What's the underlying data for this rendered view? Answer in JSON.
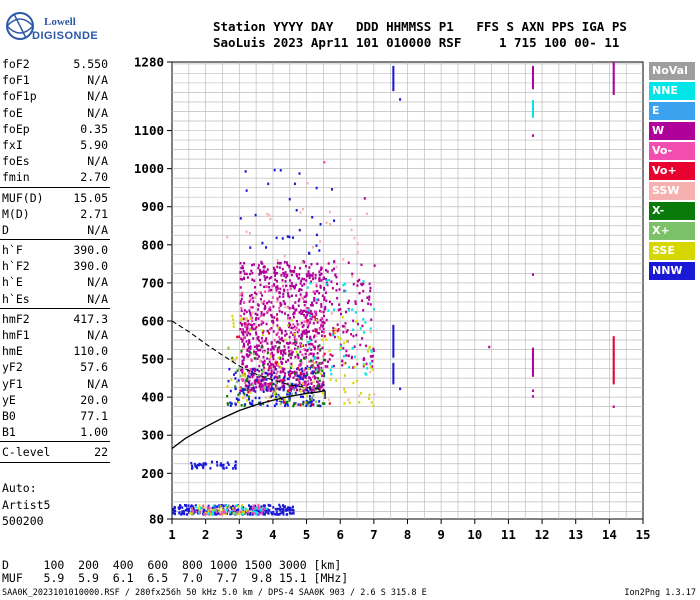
{
  "logo": {
    "line1": "Lowell",
    "line2": "DIGISONDE"
  },
  "header": {
    "line1": "Station YYYY DAY   DDD HHMMSS P1   FFS S AXN PPS IGA PS",
    "line2": "SaoLuis 2023 Apr11 101 010000 RSF     1 715 100 00- 11"
  },
  "params": {
    "group1": [
      {
        "name": "foF2",
        "value": "5.550"
      },
      {
        "name": "foF1",
        "value": "N/A"
      },
      {
        "name": "foF1p",
        "value": "N/A"
      },
      {
        "name": "foE",
        "value": "N/A"
      },
      {
        "name": "foEp",
        "value": "0.35"
      },
      {
        "name": "fxI",
        "value": "5.90"
      },
      {
        "name": "foEs",
        "value": "N/A"
      },
      {
        "name": "fmin",
        "value": "2.70"
      }
    ],
    "group2": [
      {
        "name": "MUF(D)",
        "value": "15.05"
      },
      {
        "name": "M(D)",
        "value": "2.71"
      },
      {
        "name": "D",
        "value": "N/A"
      }
    ],
    "group3": [
      {
        "name": "h`F",
        "value": "390.0"
      },
      {
        "name": "h`F2",
        "value": "390.0"
      },
      {
        "name": "h`E",
        "value": "N/A"
      },
      {
        "name": "h`Es",
        "value": "N/A"
      }
    ],
    "group4": [
      {
        "name": "hmF2",
        "value": "417.3"
      },
      {
        "name": "hmF1",
        "value": "N/A"
      },
      {
        "name": "hmE",
        "value": "110.0"
      },
      {
        "name": "yF2",
        "value": "57.6"
      },
      {
        "name": "yF1",
        "value": "N/A"
      },
      {
        "name": "yE",
        "value": "20.0"
      },
      {
        "name": "B0",
        "value": "77.1"
      },
      {
        "name": "B1",
        "value": "1.00"
      }
    ],
    "group5": [
      {
        "name": "C-level",
        "value": "22"
      }
    ]
  },
  "auto": {
    "line1": "Auto:",
    "line2": "Artist5",
    "line3": "500200"
  },
  "legend": [
    {
      "label": "NoVal",
      "color": "#9e9e9e",
      "text_color": "#ffffff"
    },
    {
      "label": "NNE",
      "color": "#00e5e5",
      "text_color": "#ffffff"
    },
    {
      "label": "E",
      "color": "#3aa2ee",
      "text_color": "#ffffff"
    },
    {
      "label": "W",
      "color": "#b0009a",
      "text_color": "#ffffff"
    },
    {
      "label": "Vo-",
      "color": "#f24eaf",
      "text_color": "#ffffff"
    },
    {
      "label": "Vo+",
      "color": "#e8002e",
      "text_color": "#ffffff"
    },
    {
      "label": "SSW",
      "color": "#f7b0b0",
      "text_color": "#ffffff"
    },
    {
      "label": "X-",
      "color": "#0a7a0a",
      "text_color": "#ffffff"
    },
    {
      "label": "X+",
      "color": "#7cc06a",
      "text_color": "#ffffff"
    },
    {
      "label": "SSE",
      "color": "#d6d600",
      "text_color": "#ffffff"
    },
    {
      "label": "NNW",
      "color": "#1a1ad6",
      "text_color": "#ffffff"
    }
  ],
  "footer": {
    "line1": "D     100  200  400  600  800 1000 1500 3000 [km]",
    "line2": "MUF   5.9  5.9  6.1  6.5  7.0  7.7  9.8 15.1 [MHz]",
    "bottom": "SAA0K_2023101010000.RSF / 280fx256h 50 kHz 5.0 km / DPS-4 SAA0K 903 / 2.6 S 315.8 E",
    "version": "Ion2Png 1.3.17"
  },
  "chart_data": {
    "type": "scatter",
    "xlim": [
      1,
      15
    ],
    "ylim": [
      80,
      1280
    ],
    "x_ticks": [
      1,
      2,
      3,
      4,
      5,
      6,
      7,
      8,
      9,
      10,
      11,
      12,
      13,
      14,
      15
    ],
    "y_ticks": [
      80,
      200,
      300,
      400,
      500,
      600,
      700,
      800,
      900,
      1000,
      1100,
      1280
    ],
    "grid": true,
    "x_unit": "MHz",
    "y_unit": "km",
    "trace_profile": {
      "x": [
        1.0,
        1.4,
        2.0,
        2.5,
        3.0,
        3.5,
        4.0,
        4.5,
        5.0,
        5.3,
        5.55
      ],
      "y": [
        265,
        292,
        322,
        345,
        365,
        380,
        392,
        402,
        410,
        413,
        417
      ]
    },
    "dashed_curve": {
      "x": [
        1.0,
        1.5,
        2.0,
        2.5,
        3.0,
        3.5,
        4.0,
        4.5,
        5.0,
        5.3,
        5.55
      ],
      "y": [
        600,
        572,
        540,
        510,
        482,
        460,
        445,
        432,
        425,
        422,
        418
      ]
    },
    "point_clusters": [
      {
        "label": "W",
        "x": [
          3.0,
          5.5
        ],
        "y": [
          420,
          760
        ],
        "count": 850
      },
      {
        "label": "W",
        "x": [
          5.5,
          7.0
        ],
        "y": [
          480,
          760
        ],
        "count": 120
      },
      {
        "label": "Vo-",
        "x": [
          3.0,
          5.5
        ],
        "y": [
          420,
          700
        ],
        "count": 120
      },
      {
        "label": "NNE",
        "x": [
          5.0,
          7.0
        ],
        "y": [
          460,
          720
        ],
        "count": 50
      },
      {
        "label": "NNW",
        "x": [
          2.6,
          5.5
        ],
        "y": [
          380,
          480
        ],
        "count": 160
      },
      {
        "label": "X-",
        "x": [
          2.6,
          5.5
        ],
        "y": [
          380,
          560
        ],
        "count": 70
      },
      {
        "label": "SSE",
        "x": [
          2.6,
          7.0
        ],
        "y": [
          380,
          620
        ],
        "count": 90
      },
      {
        "label": "SSW",
        "x": [
          2.6,
          7.0
        ],
        "y": [
          380,
          900
        ],
        "count": 60
      },
      {
        "label": "Vo+",
        "x": [
          2.6,
          6.0
        ],
        "y": [
          380,
          620
        ],
        "count": 35
      },
      {
        "label": "X+",
        "x": [
          2.6,
          5.5
        ],
        "y": [
          380,
          540
        ],
        "count": 25
      },
      {
        "label": "NNW",
        "x": [
          1.0,
          4.6
        ],
        "y": [
          95,
          120
        ],
        "count": 240
      },
      {
        "label": "SSE",
        "x": [
          1.5,
          3.3
        ],
        "y": [
          95,
          120
        ],
        "count": 50
      },
      {
        "label": "Vo-",
        "x": [
          1.5,
          3.8
        ],
        "y": [
          95,
          120
        ],
        "count": 40
      },
      {
        "label": "NNE",
        "x": [
          1.5,
          3.8
        ],
        "y": [
          95,
          120
        ],
        "count": 25
      },
      {
        "label": "NNW",
        "x": [
          1.5,
          2.9
        ],
        "y": [
          215,
          235
        ],
        "count": 40
      },
      {
        "label": "NNW",
        "x": [
          3.0,
          5.8
        ],
        "y": [
          780,
          1000
        ],
        "count": 30
      }
    ],
    "vertical_lines": [
      {
        "label": "NNW",
        "x": 7.55,
        "y": [
          1210,
          1270
        ]
      },
      {
        "label": "NNW",
        "x": 7.55,
        "y": [
          510,
          590
        ]
      },
      {
        "label": "NNW",
        "x": 7.55,
        "y": [
          440,
          490
        ]
      },
      {
        "label": "W",
        "x": 11.7,
        "y": [
          1215,
          1270
        ]
      },
      {
        "label": "W",
        "x": 11.7,
        "y": [
          460,
          530
        ]
      },
      {
        "label": "NNE",
        "x": 11.7,
        "y": [
          1140,
          1180
        ]
      },
      {
        "label": "W",
        "x": 14.1,
        "y": [
          1200,
          1280
        ]
      },
      {
        "label": "Vo+",
        "x": 14.1,
        "y": [
          440,
          560
        ]
      }
    ],
    "isolated_points": [
      {
        "label": "NNW",
        "x": 7.75,
        "y": 1185
      },
      {
        "label": "NNW",
        "x": 7.75,
        "y": 425
      },
      {
        "label": "W",
        "x": 11.7,
        "y": 1090
      },
      {
        "label": "W",
        "x": 11.7,
        "y": 725
      },
      {
        "label": "W",
        "x": 10.4,
        "y": 535
      },
      {
        "label": "W",
        "x": 14.1,
        "y": 378
      },
      {
        "label": "W",
        "x": 11.7,
        "y": 405
      },
      {
        "label": "W",
        "x": 11.7,
        "y": 420
      },
      {
        "label": "Vo-",
        "x": 5.5,
        "y": 1020
      },
      {
        "label": "SSW",
        "x": 5.0,
        "y": 965
      },
      {
        "label": "W",
        "x": 6.7,
        "y": 925
      }
    ]
  }
}
